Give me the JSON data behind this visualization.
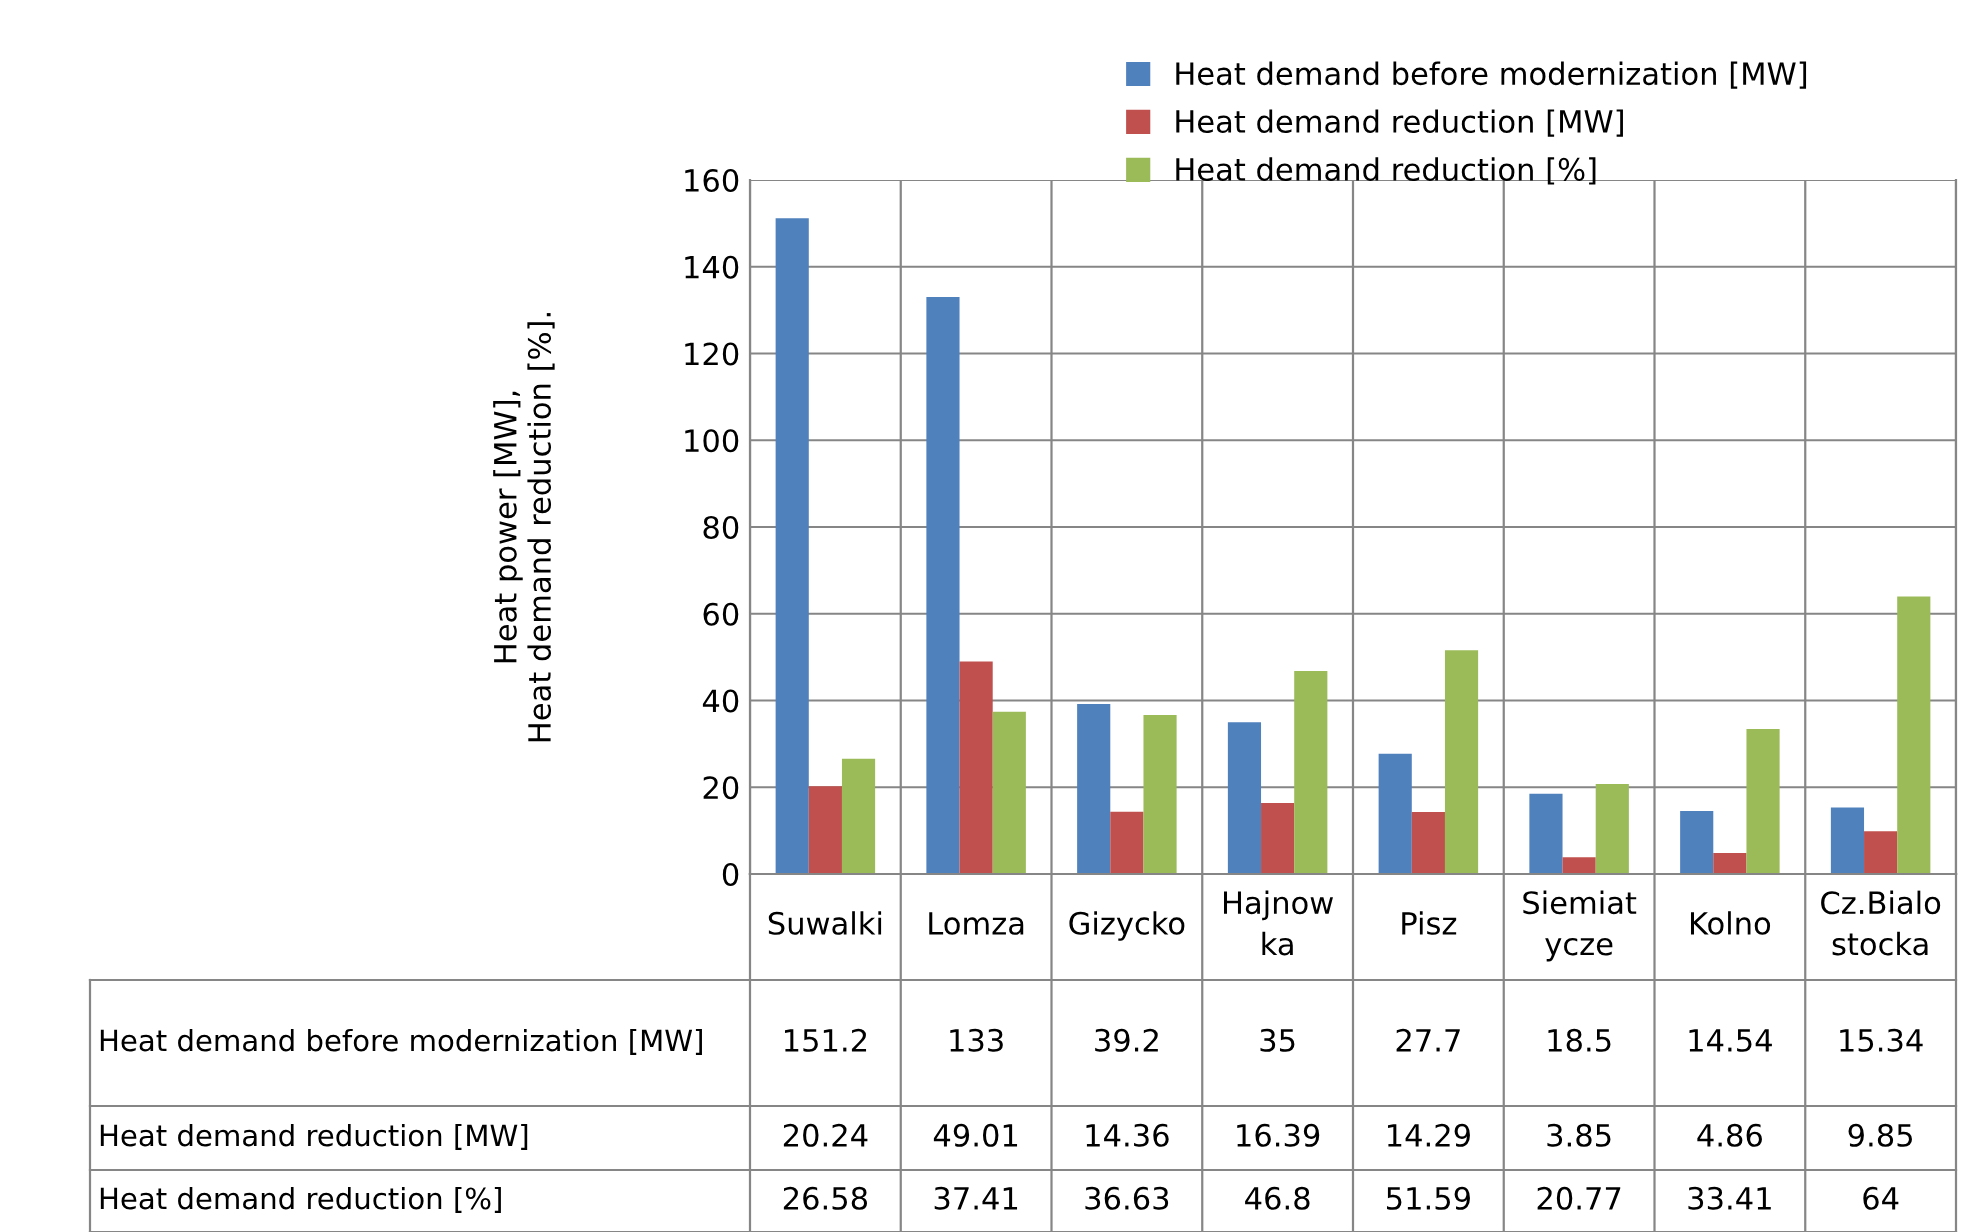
{
  "chart_data": {
    "type": "bar",
    "ylabel": "Heat power [MW],\nHeat demand reduction [%].",
    "categories": [
      "Suwalki",
      "Lomza",
      "Gizycko",
      "Hajnow\nka",
      "Pisz",
      "Siemiat\nycze",
      "Kolno",
      "Cz.Bialo\nstocka"
    ],
    "series": [
      {
        "name": "Heat demand before modernization [MW]",
        "color": "#4f81bd",
        "values": [
          151.2,
          133,
          39.2,
          35,
          27.7,
          18.5,
          14.54,
          15.34
        ]
      },
      {
        "name": "Heat demand reduction [MW]",
        "color": "#c0504d",
        "values": [
          20.24,
          49.01,
          14.36,
          16.39,
          14.29,
          3.85,
          4.86,
          9.85
        ]
      },
      {
        "name": "Heat demand reduction [%]",
        "color": "#9bbb59",
        "values": [
          26.58,
          37.41,
          36.63,
          46.8,
          51.59,
          20.77,
          33.41,
          64
        ]
      }
    ],
    "ylim": [
      0,
      160
    ],
    "yticks": [
      0,
      20,
      40,
      60,
      80,
      100,
      120,
      140,
      160
    ],
    "grid": true,
    "legend": "top right",
    "data_labels": true
  }
}
